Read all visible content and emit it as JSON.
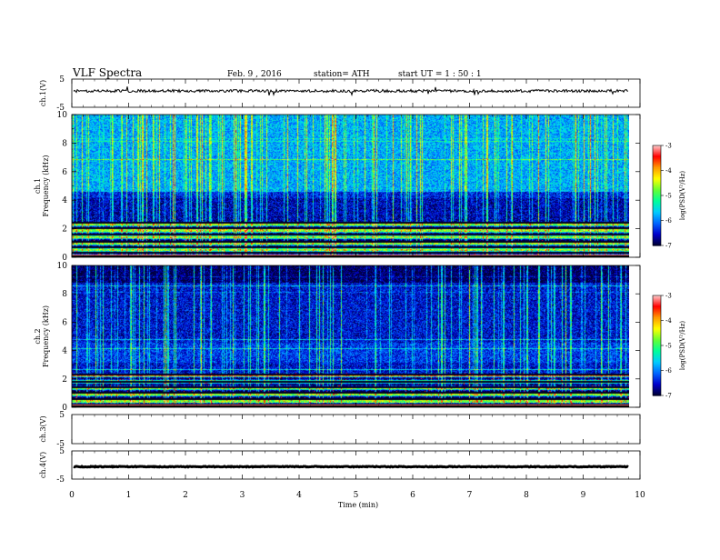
{
  "header": {
    "title": "VLF  Spectra",
    "date": "Feb. 9  , 2016",
    "station": "station= ATH",
    "start": "start  UT  =   1  : 50 : 1"
  },
  "chart_data": {
    "type": "heatmap",
    "x_axis": {
      "label": "Time  (min)",
      "range": [
        0,
        10
      ],
      "ticks": [
        "0",
        "1",
        "2",
        "3",
        "4",
        "5",
        "6",
        "7",
        "8",
        "9",
        "10"
      ],
      "data_end_min": 9.8
    },
    "panels": [
      {
        "name": "ch.1(V)",
        "kind": "waveform",
        "ylabel": "ch.1(V)",
        "ylim": [
          -5,
          5
        ],
        "yticks": [
          "5",
          "-5"
        ],
        "level_v": 0.8,
        "spread_v": 0.5
      },
      {
        "name": "ch.1 spectrogram",
        "kind": "spectrogram",
        "ylabel_top": "ch.1",
        "ylabel": "Frequency  (kHz)",
        "ylim": [
          0,
          10
        ],
        "yticks": [
          "0",
          "2",
          "4",
          "6",
          "8",
          "10"
        ],
        "background_log_psd": -6.4,
        "upper_band_kHz": [
          4.6,
          10
        ],
        "upper_band_log_psd": -5.8,
        "quiet_band_kHz": [
          2.4,
          4.2
        ],
        "quiet_band_log_psd": -6.6,
        "dark_lines_kHz": [
          0.35,
          0.7,
          1.1,
          1.6,
          2.05,
          2.45
        ],
        "colorbar": {
          "label": "log(PSD(V²/Hz)",
          "ticks": [
            "-3",
            "-4",
            "-5",
            "-6",
            "-7"
          ],
          "range": [
            -7,
            -3
          ]
        }
      },
      {
        "name": "ch.2 spectrogram",
        "kind": "spectrogram",
        "ylabel_top": "ch.2",
        "ylabel": "Frequency  (kHz)",
        "ylim": [
          0,
          10
        ],
        "yticks": [
          "0",
          "2",
          "4",
          "6",
          "8",
          "10"
        ],
        "background_log_psd": -6.5,
        "upper_band_kHz": [
          8.8,
          10
        ],
        "upper_band_log_psd": -6.9,
        "quiet_band_kHz": [
          3.2,
          4.6
        ],
        "quiet_band_log_psd": -6.3,
        "dark_lines_kHz": [
          0.2,
          0.6,
          1.0,
          1.4,
          1.8,
          2.3
        ],
        "colorbar": {
          "label": "log(PSD(V²/Hz)",
          "ticks": [
            "-3",
            "-4",
            "-5",
            "-6",
            "-7"
          ],
          "range": [
            -7,
            -3
          ]
        }
      },
      {
        "name": "ch.3(V)",
        "kind": "waveform-empty",
        "ylabel": "ch.3(V)",
        "ylim": [
          -5,
          5
        ],
        "yticks": [
          "5",
          "-5"
        ]
      },
      {
        "name": "ch.4(V)",
        "kind": "waveform",
        "ylabel": "ch.4(V)",
        "ylim": [
          -5,
          5
        ],
        "yticks": [
          "5",
          "-5"
        ],
        "level_v": -0.6,
        "spread_v": 0.15
      }
    ],
    "colormap": [
      "#000033",
      "#0000cc",
      "#0066ff",
      "#00ccff",
      "#00ff99",
      "#66ff33",
      "#ffff00",
      "#ff9900",
      "#ff0000",
      "#ffcccc"
    ]
  }
}
